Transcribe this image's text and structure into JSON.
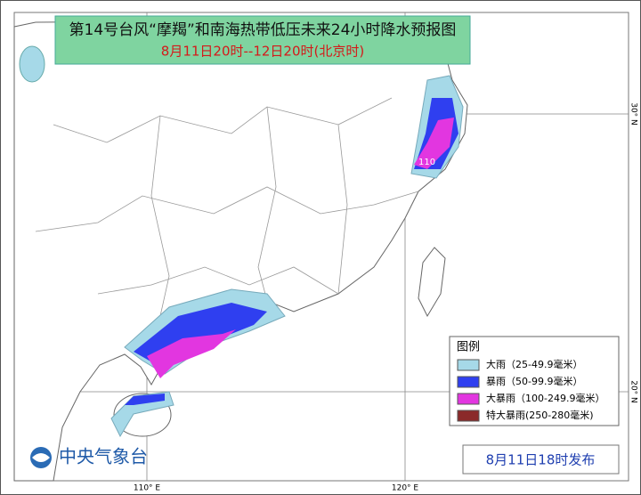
{
  "header": {
    "title": "第14号台风“摩羯”和南海热带低压未来24小时降水预报图",
    "subtitle": "8月11日20时--12日20时(北京时)"
  },
  "legend": {
    "title": "图例",
    "items": [
      {
        "label": "大雨（25-49.9毫米）",
        "color": "#a6d9e8"
      },
      {
        "label": "暴雨（50-99.9毫米）",
        "color": "#2f3ff0"
      },
      {
        "label": "大暴雨（100-249.9毫米）",
        "color": "#e236e0"
      },
      {
        "label": "特大暴雨(250-280毫米)",
        "color": "#8b2a2a"
      }
    ]
  },
  "footer": {
    "agency": "中央气象台",
    "issued": "8月11日18时发布"
  },
  "grid_labels": {
    "x": [
      "110° E",
      "120° E"
    ],
    "y": [
      "20° N",
      "30° N"
    ]
  },
  "map_labels": [
    "110"
  ]
}
